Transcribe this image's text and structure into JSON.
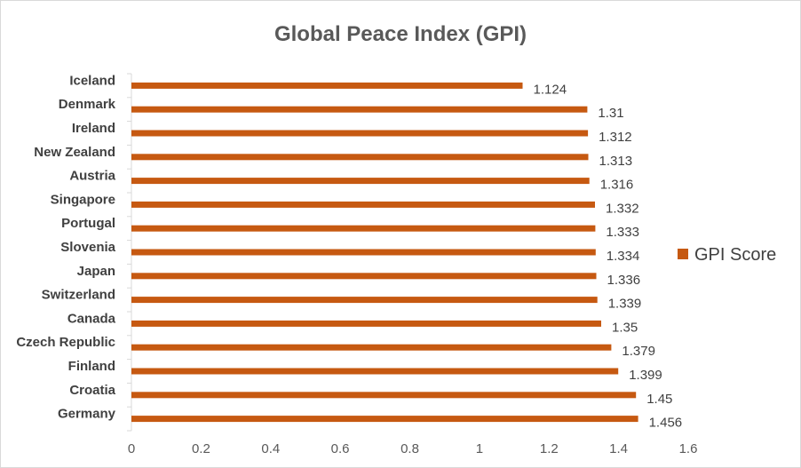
{
  "chart_data": {
    "type": "bar",
    "orientation": "horizontal",
    "title": "Global Peace Index (GPI)",
    "categories": [
      "Iceland",
      "Denmark",
      "Ireland",
      "New Zealand",
      "Austria",
      "Singapore",
      "Portugal",
      "Slovenia",
      "Japan",
      "Switzerland",
      "Canada",
      "Czech Republic",
      "Finland",
      "Croatia",
      "Germany"
    ],
    "series": [
      {
        "name": "GPI Score",
        "color": "#c65911",
        "values": [
          1.124,
          1.31,
          1.312,
          1.313,
          1.316,
          1.332,
          1.333,
          1.334,
          1.336,
          1.339,
          1.35,
          1.379,
          1.399,
          1.45,
          1.456
        ],
        "labels": [
          "1.124",
          "1.31",
          "1.312",
          "1.313",
          "1.316",
          "1.332",
          "1.333",
          "1.334",
          "1.336",
          "1.339",
          "1.35",
          "1.379",
          "1.399",
          "1.45",
          "1.456"
        ]
      }
    ],
    "xlim": [
      0,
      1.6
    ],
    "xticks": [
      "0",
      "0.2",
      "0.4",
      "0.6",
      "0.8",
      "1",
      "1.2",
      "1.4",
      "1.6"
    ],
    "xlabel": "",
    "ylabel": "",
    "grid": false,
    "legend": {
      "position": "right",
      "entries": [
        "GPI Score"
      ]
    },
    "data_labels": true
  }
}
